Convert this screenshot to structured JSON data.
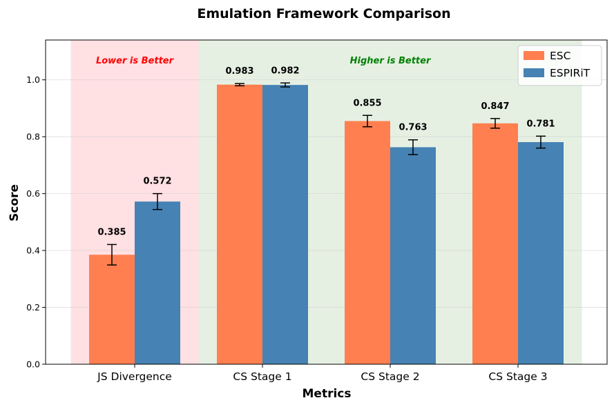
{
  "chart_data": {
    "type": "bar",
    "title": "Emulation Framework Comparison",
    "xlabel": "Metrics",
    "ylabel": "Score",
    "ylim": [
      0,
      1.14
    ],
    "yticks": [
      "0.0",
      "0.2",
      "0.4",
      "0.6",
      "0.8",
      "1.0"
    ],
    "grid": true,
    "legend_position": "top-right",
    "categories": [
      "JS Divergence",
      "CS Stage 1",
      "CS Stage 2",
      "CS Stage 3"
    ],
    "series": [
      {
        "name": "ESC",
        "color": "#FF7F50",
        "values": [
          0.385,
          0.983,
          0.855,
          0.847
        ],
        "labels": [
          "0.385",
          "0.983",
          "0.855",
          "0.847"
        ],
        "errors": [
          0.036,
          0.004,
          0.02,
          0.017
        ]
      },
      {
        "name": "ESPIRiT",
        "color": "#4682B4",
        "values": [
          0.572,
          0.982,
          0.763,
          0.781
        ],
        "labels": [
          "0.572",
          "0.982",
          "0.763",
          "0.781"
        ],
        "errors": [
          0.028,
          0.007,
          0.026,
          0.021
        ]
      }
    ],
    "regions": [
      {
        "text": "Lower is Better",
        "color": "#ff0000",
        "fill": "#ffe0e3",
        "categories": [
          0
        ]
      },
      {
        "text": "Higher is Better",
        "color": "#008000",
        "fill": "#e5f0e3",
        "categories": [
          1,
          2,
          3
        ]
      }
    ]
  }
}
